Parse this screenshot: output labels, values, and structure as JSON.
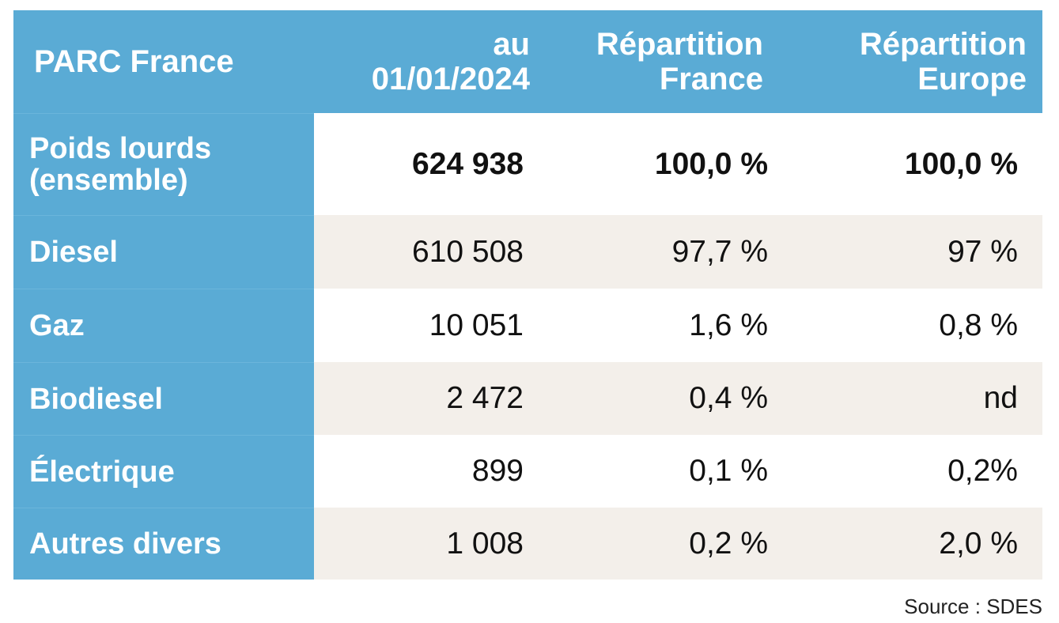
{
  "table": {
    "header": [
      [
        "PARC France"
      ],
      [
        "au",
        "01/01/2024"
      ],
      [
        "Répartition",
        "France"
      ],
      [
        "Répartition",
        "Europe"
      ]
    ],
    "rows": [
      [
        [
          "Poids lourds",
          "(ensemble)"
        ],
        "624 938",
        "100,0 %",
        "100,0 %"
      ],
      [
        [
          "Diesel"
        ],
        "610 508",
        "97,7 %",
        "97 %"
      ],
      [
        [
          "Gaz"
        ],
        "10 051",
        "1,6 %",
        "0,8 %"
      ],
      [
        [
          "Biodiesel"
        ],
        "2 472",
        "0,4 %",
        "nd"
      ],
      [
        [
          "Électrique"
        ],
        "899",
        "0,1 %",
        "0,2%"
      ],
      [
        [
          "Autres divers"
        ],
        "1 008",
        "0,2 %",
        "2,0 %"
      ]
    ]
  },
  "source": "Source : SDES"
}
